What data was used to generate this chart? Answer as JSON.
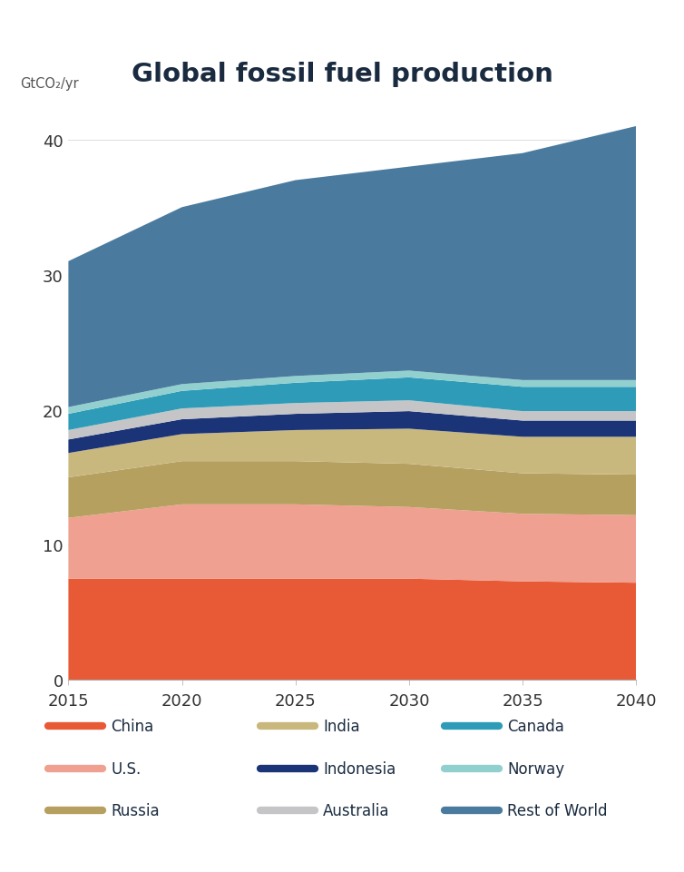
{
  "title": "Global fossil fuel production",
  "ylabel": "GtCO₂/yr",
  "years": [
    2015,
    2020,
    2025,
    2030,
    2035,
    2040
  ],
  "series_order": [
    "China",
    "U.S.",
    "Russia",
    "India",
    "Indonesia",
    "Australia",
    "Canada",
    "Norway",
    "Rest of World"
  ],
  "series": {
    "China": [
      7.5,
      7.5,
      7.5,
      7.5,
      7.3,
      7.2
    ],
    "U.S.": [
      4.5,
      5.5,
      5.5,
      5.3,
      5.0,
      5.0
    ],
    "Russia": [
      3.0,
      3.2,
      3.2,
      3.2,
      3.0,
      3.0
    ],
    "India": [
      1.8,
      2.0,
      2.3,
      2.6,
      2.7,
      2.8
    ],
    "Indonesia": [
      1.0,
      1.1,
      1.2,
      1.3,
      1.2,
      1.2
    ],
    "Australia": [
      0.7,
      0.8,
      0.8,
      0.8,
      0.7,
      0.7
    ],
    "Canada": [
      1.2,
      1.3,
      1.5,
      1.7,
      1.8,
      1.8
    ],
    "Norway": [
      0.5,
      0.5,
      0.5,
      0.5,
      0.5,
      0.5
    ],
    "Rest of World": [
      10.8,
      13.1,
      14.5,
      15.1,
      16.8,
      18.8
    ]
  },
  "colors": {
    "China": "#E85A35",
    "U.S.": "#F0A090",
    "Russia": "#B5A060",
    "India": "#C9B87E",
    "Indonesia": "#1B3478",
    "Australia": "#C5C5C8",
    "Canada": "#2E9CB8",
    "Norway": "#92D0D0",
    "Rest of World": "#4A7B9E"
  },
  "legend_cols": [
    [
      "China",
      "U.S.",
      "Russia"
    ],
    [
      "India",
      "Indonesia",
      "Australia"
    ],
    [
      "Canada",
      "Norway",
      "Rest of World"
    ]
  ],
  "ylim": [
    0,
    42
  ],
  "yticks": [
    0,
    10,
    20,
    30,
    40
  ],
  "xlim": [
    2015,
    2040
  ],
  "xticks": [
    2015,
    2020,
    2025,
    2030,
    2035,
    2040
  ],
  "background_color": "#FFFFFF",
  "title_color": "#1A2B40",
  "tick_color": "#333333",
  "grid_color": "#DDDDDD",
  "ylabel_color": "#555555"
}
